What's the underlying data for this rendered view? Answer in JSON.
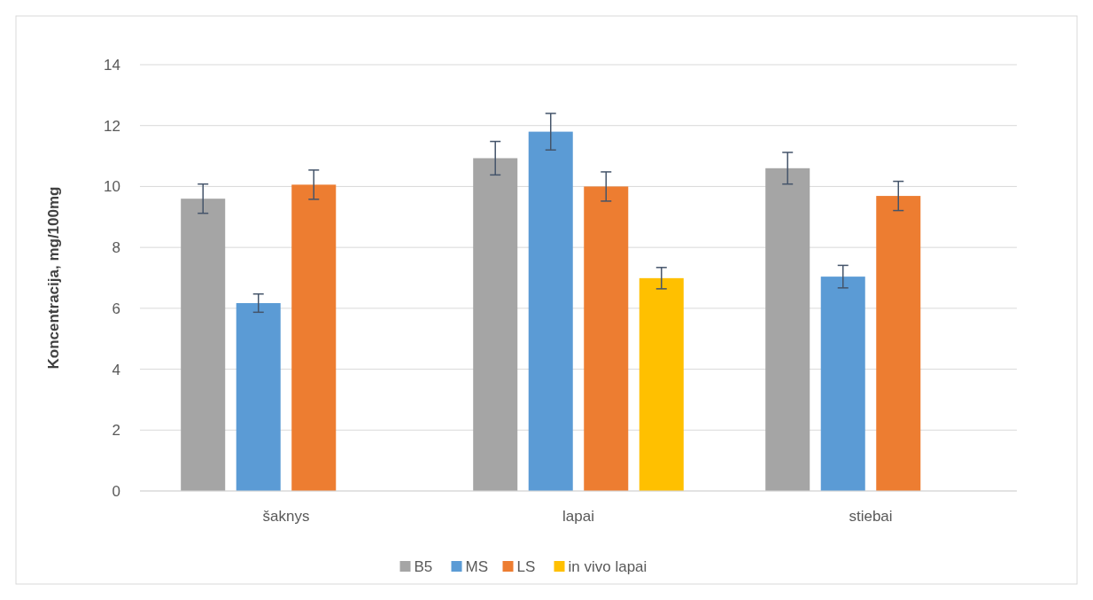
{
  "chart_data": {
    "type": "bar",
    "ylabel": "Koncentracija, mg/100mg",
    "categories": [
      "šaknys",
      "lapai",
      "stiebai"
    ],
    "series": [
      {
        "name": "B5",
        "color": "#a5a5a5",
        "values": [
          9.6,
          10.93,
          10.6
        ],
        "errors": [
          0.48,
          0.55,
          0.52
        ]
      },
      {
        "name": "MS",
        "color": "#5b9bd5",
        "values": [
          6.17,
          11.8,
          7.04
        ],
        "errors": [
          0.3,
          0.6,
          0.37
        ]
      },
      {
        "name": "LS",
        "color": "#ed7d31",
        "values": [
          10.06,
          10.0,
          9.69
        ],
        "errors": [
          0.48,
          0.48,
          0.48
        ]
      },
      {
        "name": "in vivo lapai",
        "color": "#ffc000",
        "values": [
          null,
          6.99,
          null
        ],
        "errors": [
          null,
          0.35,
          null
        ]
      }
    ],
    "ylim": [
      0,
      14
    ],
    "yticks": [
      0,
      2,
      4,
      6,
      8,
      10,
      12,
      14
    ],
    "grid": "y",
    "legend": "bottom"
  }
}
